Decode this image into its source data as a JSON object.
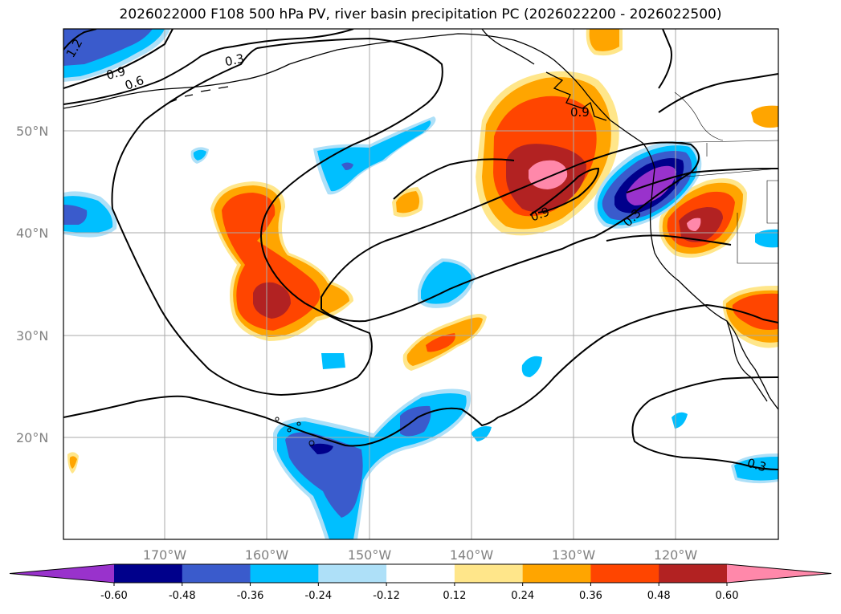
{
  "title": "2026022000 F108 500 hPa PV, river basin precipitation PC (2026022200 - 2026022500)",
  "lat_labels": [
    "50°N",
    "40°N",
    "30°N",
    "20°N"
  ],
  "lon_labels": [
    "170°W",
    "160°W",
    "150°W",
    "140°W",
    "130°W",
    "120°W"
  ],
  "contour_labels": [
    "1.2",
    "0.9",
    "0.6",
    "0.3",
    "0.9",
    "0.9",
    "0.3",
    "0.3"
  ],
  "colorbar": {
    "ticks": [
      "-0.60",
      "-0.48",
      "-0.36",
      "-0.24",
      "-0.12",
      "0.12",
      "0.24",
      "0.36",
      "0.48",
      "0.60"
    ],
    "colors": [
      "#9932cc",
      "#00008b",
      "#3a5bcc",
      "#00bfff",
      "#aee0f8",
      "#ffffff",
      "#ffe68a",
      "#ffa500",
      "#ff4500",
      "#b22222",
      "#ff88aa"
    ]
  },
  "colors": {
    "pos_light": "#ffe68a",
    "pos_orange": "#ffa500",
    "pos_red": "#ff4500",
    "pos_dark": "#b22222",
    "pos_pink": "#ff88aa",
    "neg_light": "#aee0f8",
    "neg_cyan": "#00bfff",
    "neg_blue": "#3a5bcc",
    "neg_navy": "#00008b",
    "neg_purple": "#9932cc"
  }
}
